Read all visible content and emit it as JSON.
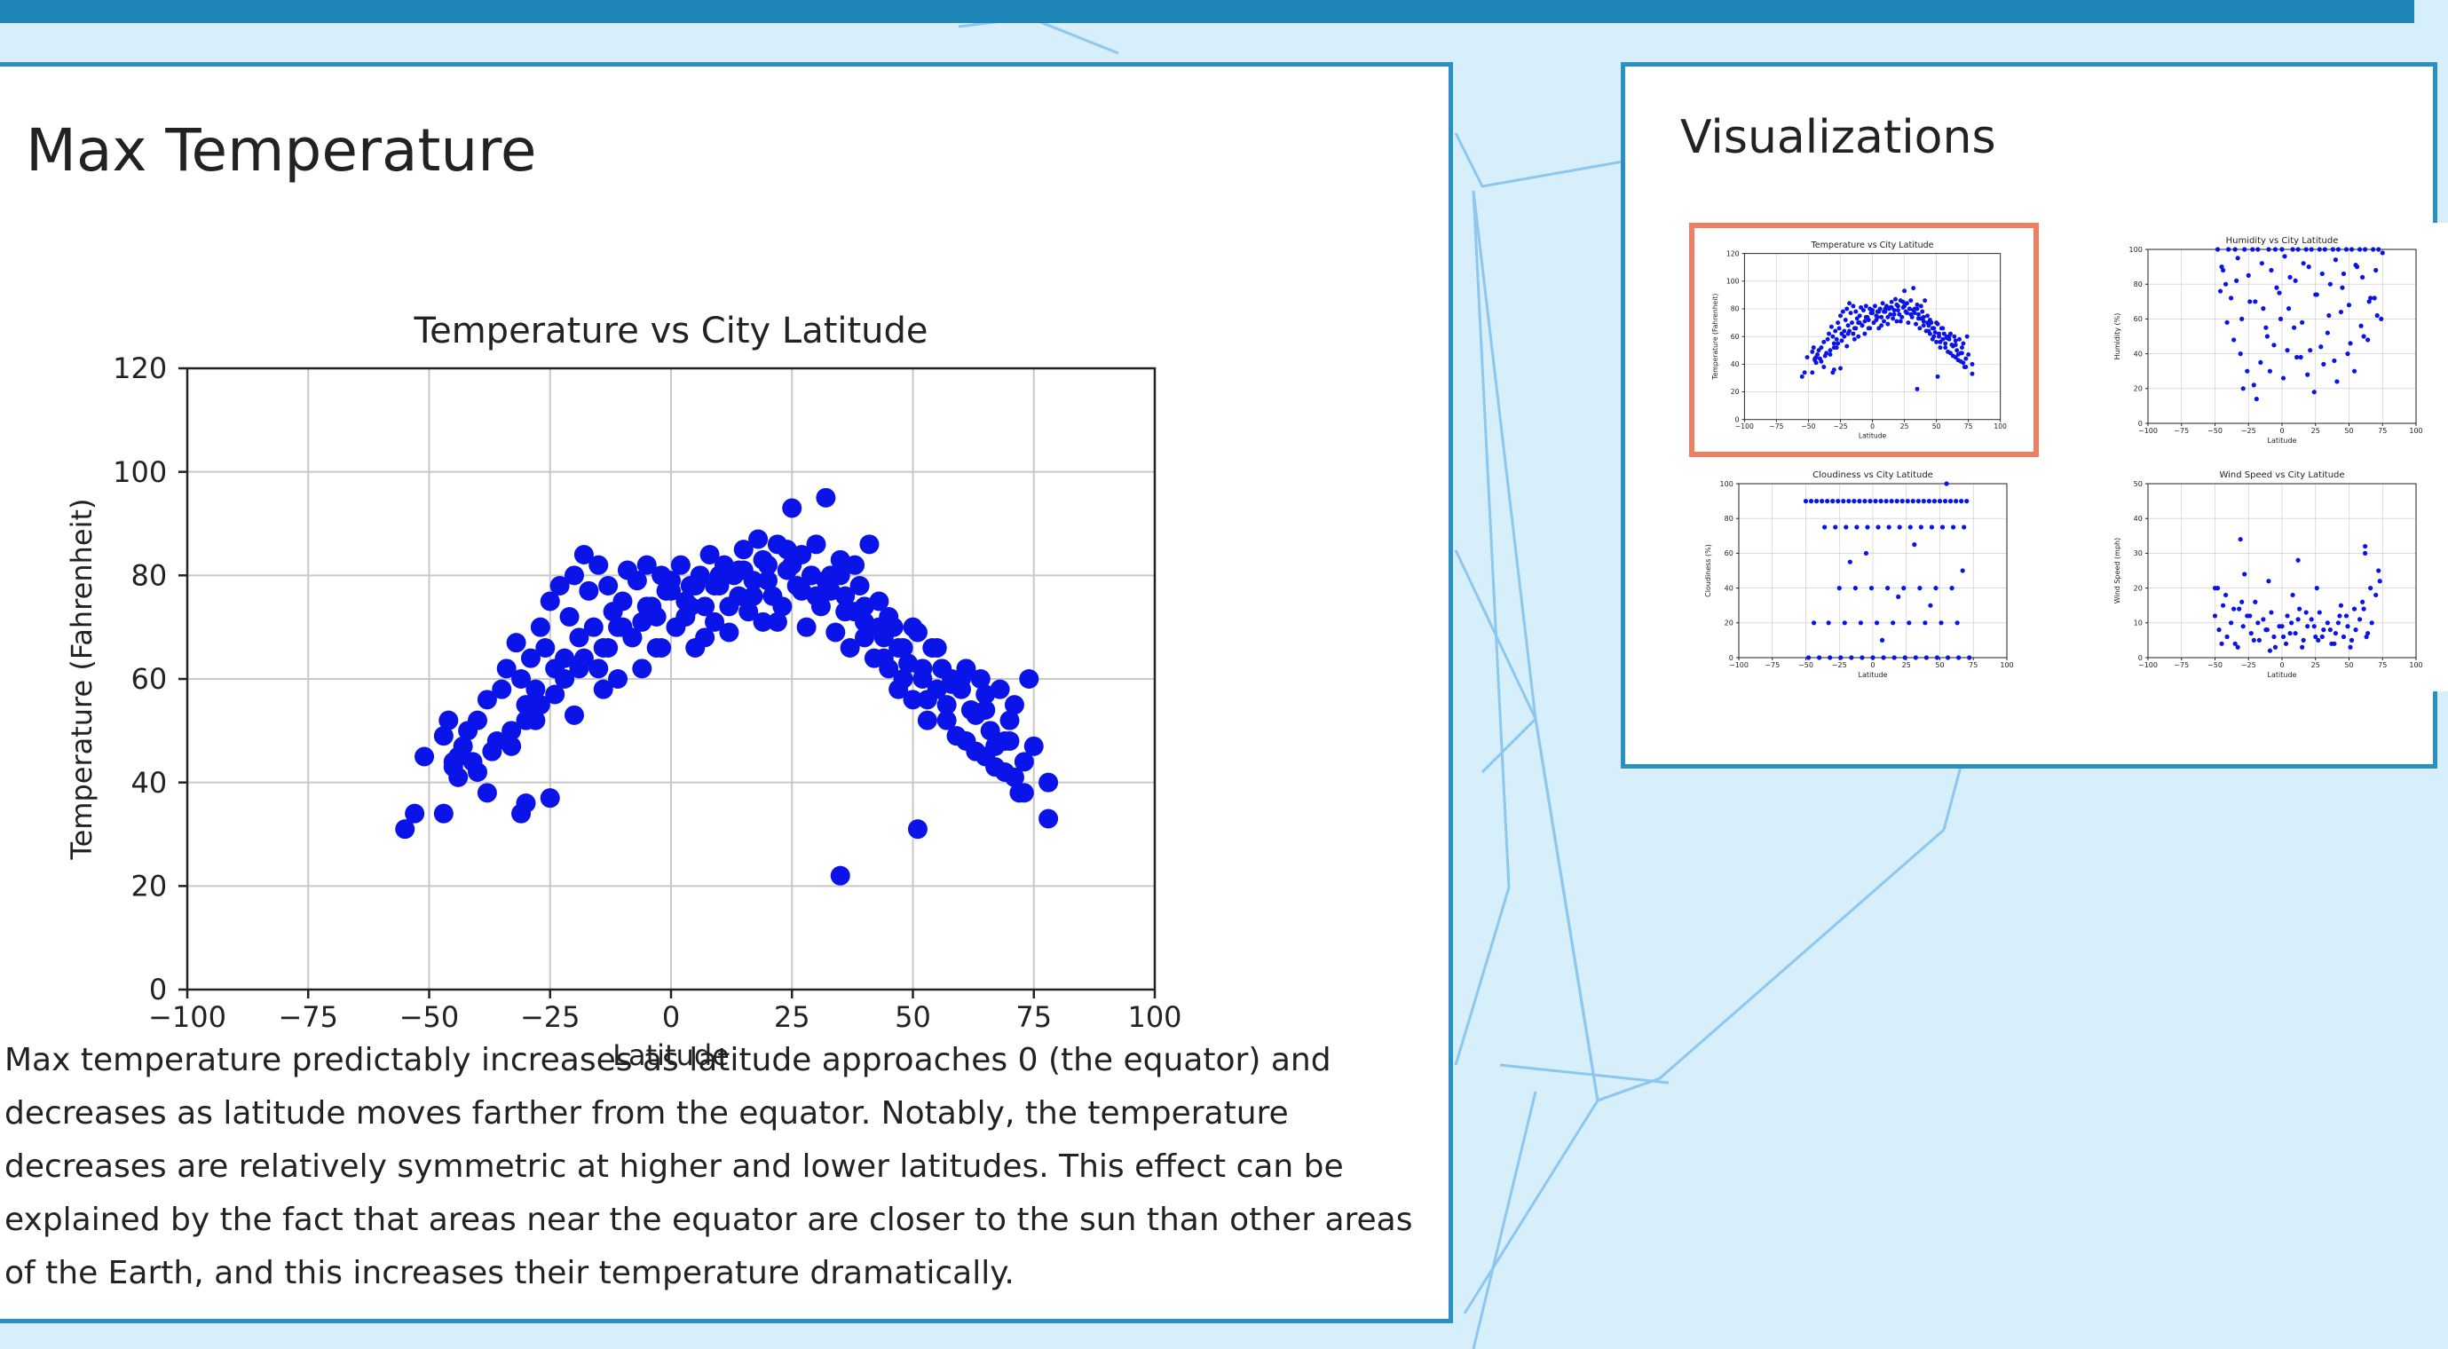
{
  "main": {
    "title": "Max Temperature",
    "description": "Max temperature predictably increases as latitude approaches 0 (the equator) and decreases as latitude moves farther from the equator. Notably, the temperature decreases are relatively symmetric at higher and lower latitudes. This effect can be explained by the fact that areas near the equator are closer to the sun than other areas of the Earth, and this increases their temperature dramatically."
  },
  "sidebar": {
    "title": "Visualizations"
  },
  "colors": {
    "topbar": "#1e87b7",
    "card_border": "#2a8fc1",
    "selected_border": "#ef7f5e",
    "marker": "#0a14e8"
  },
  "chart_data": [
    {
      "id": "temperature",
      "type": "scatter",
      "title": "Temperature vs City Latitude",
      "xlabel": "Latitude",
      "ylabel": "Temperature (Fahrenheit)",
      "xlim": [
        -100,
        100
      ],
      "ylim": [
        0,
        120
      ],
      "xticks": [
        -100,
        -75,
        -50,
        -25,
        0,
        25,
        50,
        75,
        100
      ],
      "yticks": [
        0,
        20,
        40,
        60,
        80,
        100,
        120
      ],
      "grid": true,
      "x": [
        -55,
        -53,
        -51,
        -47,
        -46,
        -45,
        -44,
        -43,
        -42,
        -41,
        -40,
        -38,
        -36,
        -35,
        -34,
        -32,
        -31,
        -30,
        -29,
        -28,
        -27,
        -26,
        -25,
        -24,
        -23,
        -22,
        -21,
        -20,
        -19,
        -18,
        -17,
        -16,
        -15,
        -14,
        -13,
        -12,
        -11,
        -10,
        -9,
        -8,
        -7,
        -6,
        -5,
        -4,
        -3,
        -2,
        -1,
        0,
        1,
        2,
        3,
        4,
        5,
        6,
        7,
        8,
        9,
        10,
        11,
        12,
        13,
        14,
        15,
        16,
        17,
        18,
        19,
        20,
        21,
        22,
        23,
        24,
        25,
        26,
        27,
        28,
        29,
        30,
        31,
        32,
        33,
        34,
        35,
        36,
        37,
        38,
        39,
        40,
        41,
        42,
        43,
        44,
        45,
        46,
        47,
        48,
        49,
        50,
        51,
        52,
        53,
        54,
        55,
        56,
        57,
        58,
        59,
        60,
        61,
        62,
        63,
        64,
        65,
        66,
        67,
        68,
        69,
        70,
        71,
        72,
        73,
        74,
        75,
        78,
        -47,
        -44,
        -40,
        -37,
        -33,
        -30,
        -27,
        -22,
        -18,
        -14,
        -11,
        -6,
        -2,
        3,
        7,
        12,
        17,
        22,
        27,
        32,
        36,
        40,
        44,
        48,
        53,
        57,
        61,
        65,
        69,
        73,
        -30,
        -25,
        -20,
        -15,
        -10,
        -5,
        0,
        5,
        10,
        15,
        20,
        25,
        30,
        35,
        40,
        45,
        50,
        55,
        60,
        65,
        70,
        -45,
        -38,
        -33,
        -28,
        -24,
        -19,
        -13,
        -8,
        -3,
        4,
        9,
        14,
        19,
        24,
        29,
        33,
        38,
        43,
        47,
        52,
        58,
        63,
        67,
        71,
        35,
        51,
        -31,
        78
      ],
      "y": [
        31,
        34,
        45,
        49,
        52,
        43,
        41,
        47,
        50,
        44,
        52,
        56,
        48,
        58,
        62,
        67,
        60,
        55,
        64,
        58,
        70,
        66,
        75,
        62,
        78,
        64,
        72,
        80,
        68,
        84,
        77,
        70,
        82,
        66,
        78,
        73,
        60,
        75,
        81,
        68,
        79,
        71,
        82,
        74,
        66,
        80,
        77,
        79,
        70,
        82,
        75,
        78,
        66,
        80,
        74,
        84,
        71,
        78,
        82,
        69,
        80,
        76,
        85,
        73,
        79,
        87,
        71,
        82,
        76,
        86,
        74,
        81,
        93,
        78,
        84,
        70,
        80,
        86,
        74,
        95,
        80,
        69,
        83,
        76,
        66,
        82,
        78,
        71,
        86,
        64,
        75,
        68,
        62,
        70,
        58,
        66,
        63,
        56,
        69,
        60,
        52,
        66,
        58,
        62,
        55,
        60,
        49,
        58,
        62,
        54,
        46,
        60,
        57,
        50,
        43,
        58,
        48,
        52,
        55,
        38,
        44,
        60,
        47,
        40,
        34,
        45,
        42,
        46,
        50,
        52,
        55,
        60,
        64,
        58,
        70,
        62,
        66,
        72,
        68,
        74,
        76,
        71,
        77,
        79,
        73,
        68,
        64,
        60,
        56,
        52,
        48,
        45,
        42,
        38,
        36,
        37,
        53,
        62,
        70,
        74,
        77,
        78,
        80,
        81,
        79,
        82,
        76,
        80,
        74,
        72,
        70,
        66,
        60,
        54,
        48,
        44,
        38,
        47,
        52,
        57,
        62,
        66,
        68,
        72,
        74,
        78,
        81,
        83,
        85,
        80,
        77,
        73,
        70,
        66,
        62,
        59,
        53,
        47,
        41,
        22,
        31,
        34,
        33
      ]
    },
    {
      "id": "humidity",
      "type": "scatter",
      "title": "Humidity vs City Latitude",
      "xlabel": "Latitude",
      "ylabel": "Humidity (%)",
      "xlim": [
        -100,
        100
      ],
      "ylim": [
        0,
        100
      ],
      "xticks": [
        -100,
        -75,
        -50,
        -25,
        0,
        25,
        50,
        75,
        100
      ],
      "yticks": [
        0,
        20,
        40,
        60,
        80,
        100
      ],
      "grid": true,
      "x": [
        -48,
        -45,
        -42,
        -40,
        -38,
        -35,
        -33,
        -30,
        -28,
        -25,
        -22,
        -20,
        -18,
        -15,
        -12,
        -10,
        -8,
        -5,
        -2,
        0,
        2,
        5,
        8,
        10,
        12,
        15,
        18,
        20,
        22,
        25,
        28,
        30,
        32,
        35,
        38,
        40,
        42,
        45,
        48,
        50,
        52,
        55,
        58,
        60,
        62,
        65,
        68,
        70,
        72,
        75,
        -46,
        -41,
        -36,
        -31,
        -26,
        -21,
        -16,
        -11,
        -6,
        -1,
        4,
        9,
        14,
        19,
        24,
        29,
        34,
        39,
        44,
        49,
        54,
        59,
        64,
        69,
        74,
        -44,
        -34,
        -24,
        -14,
        -4,
        6,
        16,
        26,
        36,
        46,
        56,
        66,
        -29,
        -19,
        -9,
        1,
        11,
        21,
        31,
        41,
        51,
        61,
        71
      ],
      "y": [
        100,
        90,
        80,
        100,
        72,
        100,
        95,
        60,
        100,
        85,
        100,
        70,
        100,
        92,
        55,
        100,
        88,
        100,
        75,
        100,
        96,
        66,
        100,
        82,
        100,
        58,
        100,
        90,
        100,
        74,
        100,
        86,
        100,
        62,
        100,
        94,
        100,
        78,
        100,
        68,
        100,
        91,
        100,
        84,
        100,
        70,
        100,
        88,
        100,
        98,
        76,
        58,
        48,
        40,
        30,
        22,
        35,
        50,
        45,
        60,
        42,
        55,
        38,
        28,
        18,
        44,
        52,
        36,
        64,
        40,
        30,
        56,
        48,
        72,
        60,
        88,
        82,
        70,
        66,
        78,
        84,
        92,
        74,
        80,
        86,
        90,
        72,
        20,
        14,
        30,
        26,
        38,
        42,
        34,
        24,
        46,
        50,
        62
      ]
    },
    {
      "id": "cloudiness",
      "type": "scatter",
      "title": "Cloudiness vs City Latitude",
      "xlabel": "Latitude",
      "ylabel": "Cloudiness (%)",
      "xlim": [
        -100,
        100
      ],
      "ylim": [
        0,
        100
      ],
      "xticks": [
        -100,
        -75,
        -50,
        -25,
        0,
        25,
        50,
        75,
        100
      ],
      "yticks": [
        0,
        20,
        40,
        60,
        80,
        100
      ],
      "grid": true,
      "x": [
        -50,
        -46,
        -42,
        -38,
        -34,
        -30,
        -26,
        -22,
        -18,
        -14,
        -10,
        -6,
        -2,
        2,
        6,
        10,
        14,
        18,
        22,
        26,
        30,
        34,
        38,
        42,
        46,
        50,
        54,
        58,
        62,
        66,
        70,
        -48,
        -40,
        -32,
        -24,
        -16,
        -8,
        0,
        8,
        16,
        24,
        32,
        40,
        48,
        56,
        64,
        72,
        -36,
        -28,
        -20,
        -12,
        -4,
        4,
        12,
        20,
        28,
        36,
        44,
        52,
        60,
        68,
        -44,
        -33,
        -21,
        -9,
        3,
        15,
        27,
        39,
        51,
        63,
        -25,
        -13,
        -1,
        11,
        23,
        35,
        47,
        59,
        -17,
        -5,
        7,
        19,
        31,
        43,
        55,
        67
      ],
      "y": [
        90,
        90,
        90,
        90,
        90,
        90,
        90,
        90,
        90,
        90,
        90,
        90,
        90,
        90,
        90,
        90,
        90,
        90,
        90,
        90,
        90,
        90,
        90,
        90,
        90,
        90,
        90,
        90,
        90,
        90,
        90,
        0,
        0,
        0,
        0,
        0,
        0,
        0,
        0,
        0,
        0,
        0,
        0,
        0,
        0,
        0,
        0,
        75,
        75,
        75,
        75,
        75,
        75,
        75,
        75,
        75,
        75,
        75,
        75,
        75,
        75,
        20,
        20,
        20,
        20,
        20,
        20,
        20,
        20,
        20,
        20,
        40,
        40,
        40,
        40,
        40,
        40,
        40,
        40,
        55,
        60,
        10,
        35,
        65,
        30,
        100,
        50
      ]
    },
    {
      "id": "wind",
      "type": "scatter",
      "title": "Wind Speed vs City Latitude",
      "xlabel": "Latitude",
      "ylabel": "Wind Speed (mph)",
      "xlim": [
        -100,
        100
      ],
      "ylim": [
        0,
        50
      ],
      "xticks": [
        -100,
        -75,
        -50,
        -25,
        0,
        25,
        50,
        75,
        100
      ],
      "yticks": [
        0,
        10,
        20,
        30,
        40,
        50
      ],
      "grid": true,
      "x": [
        -50,
        -47,
        -44,
        -41,
        -38,
        -35,
        -32,
        -29,
        -26,
        -23,
        -20,
        -17,
        -14,
        -11,
        -8,
        -5,
        -2,
        1,
        4,
        7,
        10,
        13,
        16,
        19,
        22,
        25,
        28,
        31,
        34,
        37,
        40,
        43,
        46,
        49,
        52,
        55,
        58,
        61,
        64,
        67,
        70,
        73,
        -48,
        -42,
        -36,
        -30,
        -24,
        -18,
        -12,
        -6,
        0,
        6,
        12,
        18,
        24,
        30,
        36,
        42,
        48,
        54,
        60,
        66,
        72,
        -45,
        -33,
        -21,
        -9,
        3,
        15,
        27,
        39,
        51,
        63,
        -28,
        -10,
        8,
        26,
        44,
        62,
        -50,
        -31,
        12,
        62
      ],
      "y": [
        12,
        8,
        15,
        6,
        10,
        4,
        14,
        9,
        12,
        7,
        16,
        5,
        11,
        8,
        13,
        3,
        9,
        6,
        12,
        10,
        7,
        14,
        5,
        9,
        11,
        6,
        13,
        8,
        10,
        4,
        7,
        12,
        6,
        9,
        5,
        8,
        11,
        14,
        7,
        10,
        18,
        22,
        20,
        18,
        14,
        16,
        12,
        10,
        8,
        6,
        9,
        7,
        11,
        13,
        9,
        6,
        8,
        10,
        12,
        14,
        16,
        20,
        25,
        4,
        3,
        5,
        2,
        4,
        3,
        5,
        4,
        3,
        6,
        24,
        22,
        18,
        20,
        15,
        30,
        20,
        34,
        28,
        32
      ]
    }
  ]
}
